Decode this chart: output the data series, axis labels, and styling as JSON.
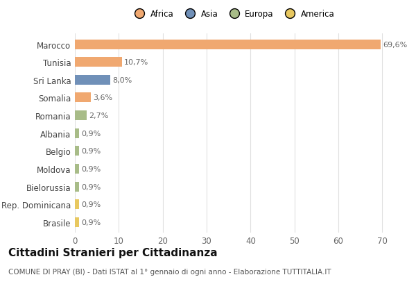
{
  "categories": [
    "Marocco",
    "Tunisia",
    "Sri Lanka",
    "Somalia",
    "Romania",
    "Albania",
    "Belgio",
    "Moldova",
    "Bielorussia",
    "Rep. Dominicana",
    "Brasile"
  ],
  "values": [
    69.6,
    10.7,
    8.0,
    3.6,
    2.7,
    0.9,
    0.9,
    0.9,
    0.9,
    0.9,
    0.9
  ],
  "labels": [
    "69,6%",
    "10,7%",
    "8,0%",
    "3,6%",
    "2,7%",
    "0,9%",
    "0,9%",
    "0,9%",
    "0,9%",
    "0,9%",
    "0,9%"
  ],
  "colors": [
    "#F0A870",
    "#F0A870",
    "#7090B8",
    "#F0A870",
    "#A8BC88",
    "#A8BC88",
    "#A8BC88",
    "#A8BC88",
    "#A8BC88",
    "#E8C860",
    "#E8C860"
  ],
  "legend_labels": [
    "Africa",
    "Asia",
    "Europa",
    "America"
  ],
  "legend_colors": [
    "#F0A870",
    "#7090B8",
    "#A8BC88",
    "#E8C860"
  ],
  "title": "Cittadini Stranieri per Cittadinanza",
  "subtitle": "COMUNE DI PRAY (BI) - Dati ISTAT al 1° gennaio di ogni anno - Elaborazione TUTTITALIA.IT",
  "xlim": [
    0,
    72
  ],
  "xticks": [
    0,
    10,
    20,
    30,
    40,
    50,
    60,
    70
  ],
  "background_color": "#ffffff",
  "grid_color": "#e0e0e0",
  "bar_height": 0.55,
  "label_fontsize": 8,
  "title_fontsize": 11,
  "subtitle_fontsize": 7.5
}
